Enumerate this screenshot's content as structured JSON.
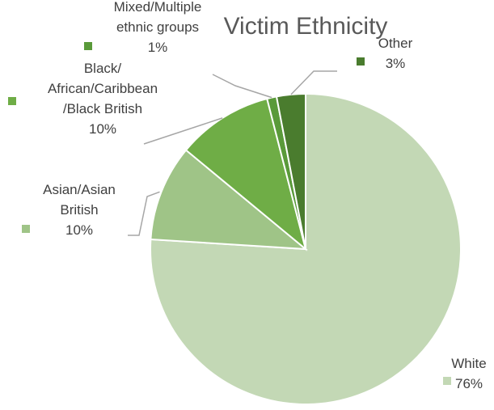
{
  "chart_data": {
    "type": "pie",
    "title": "Victim Ethnicity",
    "slices": [
      {
        "label_lines": [
          "White"
        ],
        "value_label": "76%",
        "value": 76,
        "color": "#c3d8b5"
      },
      {
        "label_lines": [
          "Asian/Asian",
          "British"
        ],
        "value_label": "10%",
        "value": 10,
        "color": "#9fc487"
      },
      {
        "label_lines": [
          "Black/",
          "African/Caribbean",
          "/Black British"
        ],
        "value_label": "10%",
        "value": 10,
        "color": "#6fad46"
      },
      {
        "label_lines": [
          "Mixed/Multiple",
          "ethnic groups"
        ],
        "value_label": "1%",
        "value": 1,
        "color": "#5a9a3a"
      },
      {
        "label_lines": [
          "Other"
        ],
        "value_label": "3%",
        "value": 3,
        "color": "#4a7c2e"
      }
    ],
    "legend": "labels with leader lines"
  }
}
